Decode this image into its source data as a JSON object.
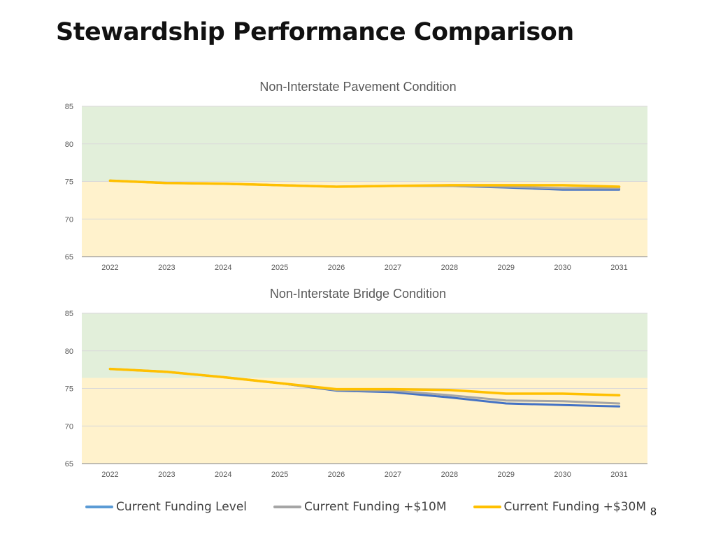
{
  "slide": {
    "title": "Stewardship Performance Comparison",
    "page_number": "8"
  },
  "colors": {
    "target_zone": "#e2efda",
    "below_zone": "#fff2cc",
    "gridline": "#d9d9d9",
    "axis": "#808080",
    "current": "#4472c4",
    "plus10": "#a5a5a5",
    "plus30": "#ffc000"
  },
  "legend": [
    {
      "label": "Current Funding Level",
      "color": "#5b9bd5"
    },
    {
      "label": "Current Funding +$10M",
      "color": "#a5a5a5"
    },
    {
      "label": "Current Funding +$30M",
      "color": "#ffc000"
    }
  ],
  "chart_data": [
    {
      "type": "line",
      "title": "Non-Interstate Pavement Condition",
      "xlabel": "",
      "ylabel": "",
      "x": [
        "2022",
        "2023",
        "2024",
        "2025",
        "2026",
        "2027",
        "2028",
        "2029",
        "2030",
        "2031"
      ],
      "ylim": [
        65,
        85
      ],
      "yticks": [
        65,
        70,
        75,
        80,
        85
      ],
      "grid": true,
      "bands": [
        {
          "from": 75,
          "to": 85,
          "color": "target_zone"
        },
        {
          "from": 65,
          "to": 75,
          "color": "below_zone"
        }
      ],
      "series": [
        {
          "color_key": "current",
          "values": [
            75.1,
            74.8,
            74.7,
            74.5,
            74.3,
            74.4,
            74.4,
            74.2,
            73.9,
            73.9
          ]
        },
        {
          "color_key": "plus10",
          "values": [
            75.1,
            74.8,
            74.7,
            74.5,
            74.3,
            74.4,
            74.4,
            74.3,
            74.1,
            74.1
          ]
        },
        {
          "color_key": "plus30",
          "values": [
            75.1,
            74.8,
            74.7,
            74.5,
            74.3,
            74.4,
            74.5,
            74.5,
            74.5,
            74.3
          ]
        }
      ]
    },
    {
      "type": "line",
      "title": "Non-Interstate Bridge Condition",
      "xlabel": "",
      "ylabel": "",
      "x": [
        "2022",
        "2023",
        "2024",
        "2025",
        "2026",
        "2027",
        "2028",
        "2029",
        "2030",
        "2031"
      ],
      "ylim": [
        65,
        85
      ],
      "yticks": [
        65,
        70,
        75,
        80,
        85
      ],
      "grid": true,
      "bands": [
        {
          "from": 76.4,
          "to": 85,
          "color": "target_zone"
        },
        {
          "from": 65,
          "to": 76.4,
          "color": "below_zone"
        }
      ],
      "series": [
        {
          "color_key": "current",
          "values": [
            77.6,
            77.2,
            76.5,
            75.7,
            74.7,
            74.5,
            73.8,
            73.0,
            72.8,
            72.6
          ]
        },
        {
          "color_key": "plus10",
          "values": [
            77.6,
            77.2,
            76.5,
            75.7,
            74.8,
            74.7,
            74.1,
            73.4,
            73.3,
            73.0
          ]
        },
        {
          "color_key": "plus30",
          "values": [
            77.6,
            77.2,
            76.5,
            75.7,
            74.9,
            74.9,
            74.8,
            74.3,
            74.3,
            74.1
          ]
        }
      ]
    }
  ]
}
